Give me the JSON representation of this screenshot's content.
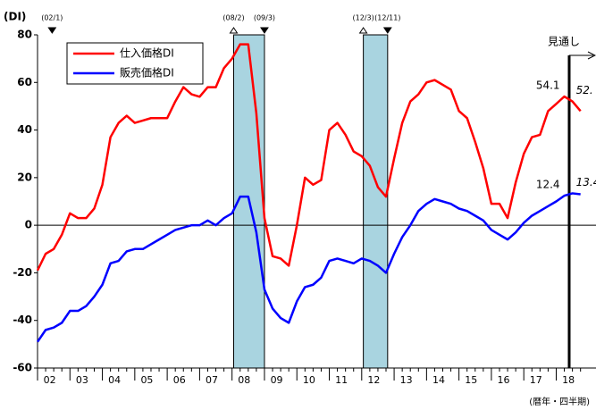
{
  "chart_data": {
    "type": "line",
    "y_unit_label": "(DI)",
    "x_axis_label": "(暦年・四半期)",
    "forecast_label": "見通し",
    "categories": [
      null,
      "02",
      null,
      null,
      null,
      "03",
      null,
      null,
      null,
      "04",
      null,
      null,
      null,
      "05",
      null,
      null,
      null,
      "06",
      null,
      null,
      null,
      "07",
      null,
      null,
      null,
      "08",
      null,
      null,
      null,
      "09",
      null,
      null,
      null,
      "10",
      null,
      null,
      null,
      "11",
      null,
      null,
      null,
      "12",
      null,
      null,
      null,
      "13",
      null,
      null,
      null,
      "14",
      null,
      null,
      null,
      "15",
      null,
      null,
      null,
      "16",
      null,
      null,
      null,
      "17",
      null,
      null,
      null,
      "18",
      null,
      null
    ],
    "series": [
      {
        "name": "仕入価格DI",
        "color": "#ff0000",
        "values": [
          -19,
          -12,
          -10,
          -4,
          5,
          3,
          3,
          7,
          17,
          37,
          43,
          46,
          43,
          44,
          45,
          45,
          45,
          52,
          58,
          55,
          54,
          58,
          58,
          66,
          70,
          76,
          76,
          47,
          3,
          -13,
          -14,
          -17,
          0,
          20,
          17,
          19,
          40,
          43,
          38,
          31,
          29,
          25,
          16,
          12,
          28,
          43,
          52,
          55,
          60,
          61,
          59,
          57,
          48,
          45,
          35,
          24,
          9,
          9,
          3,
          18,
          30,
          37,
          38,
          48,
          51,
          54.1,
          52,
          48
        ],
        "value_labels": [
          null,
          null,
          null,
          null,
          null,
          null,
          null,
          null,
          null,
          null,
          null,
          null,
          null,
          null,
          null,
          null,
          null,
          null,
          null,
          null,
          null,
          null,
          null,
          null,
          null,
          null,
          null,
          null,
          null,
          null,
          null,
          null,
          null,
          null,
          null,
          null,
          null,
          null,
          null,
          null,
          null,
          null,
          null,
          null,
          null,
          null,
          null,
          null,
          null,
          null,
          null,
          null,
          null,
          null,
          null,
          null,
          null,
          null,
          null,
          null,
          null,
          null,
          null,
          null,
          null,
          "54.1",
          "52.",
          null
        ]
      },
      {
        "name": "販売価格DI",
        "color": "#0000ff",
        "values": [
          -49,
          -44,
          -43,
          -41,
          -36,
          -36,
          -34,
          -30,
          -25,
          -16,
          -15,
          -11,
          -10,
          -10,
          -8,
          -6,
          -4,
          -2,
          -1,
          0,
          0,
          2,
          0,
          3,
          5,
          12,
          12,
          -3,
          -27,
          -35,
          -39,
          -41,
          -32,
          -26,
          -25,
          -22,
          -15,
          -14,
          -15,
          -16,
          -14,
          -15,
          -17,
          -20,
          -12,
          -5,
          0,
          6,
          9,
          11,
          10,
          9,
          7,
          6,
          4,
          2,
          -2,
          -4,
          -6,
          -3,
          1,
          4,
          6,
          8,
          10,
          12.4,
          13.4,
          13
        ],
        "value_labels": [
          null,
          null,
          null,
          null,
          null,
          null,
          null,
          null,
          null,
          null,
          null,
          null,
          null,
          null,
          null,
          null,
          null,
          null,
          null,
          null,
          null,
          null,
          null,
          null,
          null,
          null,
          null,
          null,
          null,
          null,
          null,
          null,
          null,
          null,
          null,
          null,
          null,
          null,
          null,
          null,
          null,
          null,
          null,
          null,
          null,
          null,
          null,
          null,
          null,
          null,
          null,
          null,
          null,
          null,
          null,
          null,
          null,
          null,
          null,
          null,
          null,
          null,
          null,
          null,
          null,
          "12.4",
          "13.4",
          null
        ]
      }
    ],
    "ylim": [
      -60,
      80
    ],
    "yticks": [
      -60,
      -40,
      -20,
      0,
      20,
      40,
      60,
      80
    ],
    "turning_points": [
      "(02/1)",
      "(08/2)",
      "(09/3)",
      "(12/3)",
      "(12/11)"
    ]
  }
}
